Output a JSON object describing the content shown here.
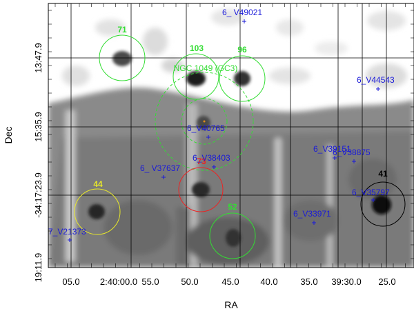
{
  "axes": {
    "xlabel": "RA",
    "ylabel": "Dec",
    "x_ticks": [
      "05.0",
      "2:40:00.0",
      "55.0",
      "50.0",
      "45.0",
      "40.0",
      "35.0",
      "39:30.0",
      "25.0"
    ],
    "y_ticks": [
      "13:47.9",
      "15:35.9",
      "-34:17:23.9",
      "19:11.9"
    ]
  },
  "colors": {
    "frame": "#000000",
    "grid": "#000000",
    "marker": "#1a1ad9",
    "green": "#33dd33",
    "yellow": "#e8e82a",
    "red": "#ee2222",
    "black": "#000000"
  },
  "circles": [
    {
      "id": "71",
      "label": "71",
      "color": "green"
    },
    {
      "id": "103",
      "label": "103",
      "color": "green"
    },
    {
      "id": "96",
      "label": "96",
      "color": "green"
    },
    {
      "id": "ngc",
      "label": "NGC 1049 (GC3)",
      "color": "green",
      "dashed": true
    },
    {
      "id": "ngc-core",
      "label": "",
      "color": "green",
      "dashed": true
    },
    {
      "id": "73",
      "label": "73",
      "color": "red"
    },
    {
      "id": "44",
      "label": "44",
      "color": "yellow"
    },
    {
      "id": "52",
      "label": "52",
      "color": "green"
    },
    {
      "id": "41",
      "label": "41",
      "color": "black"
    }
  ],
  "markers": [
    {
      "label": "6_ V49021"
    },
    {
      "label": "6_V44543"
    },
    {
      "label": "6_V40765"
    },
    {
      "label": "6_V38403"
    },
    {
      "label": "6_ V37637"
    },
    {
      "label": "6_V39151"
    },
    {
      "label": "6_V38875"
    },
    {
      "label": "6_V35797"
    },
    {
      "label": "6_V33971"
    },
    {
      "label": "7_V21373"
    }
  ]
}
